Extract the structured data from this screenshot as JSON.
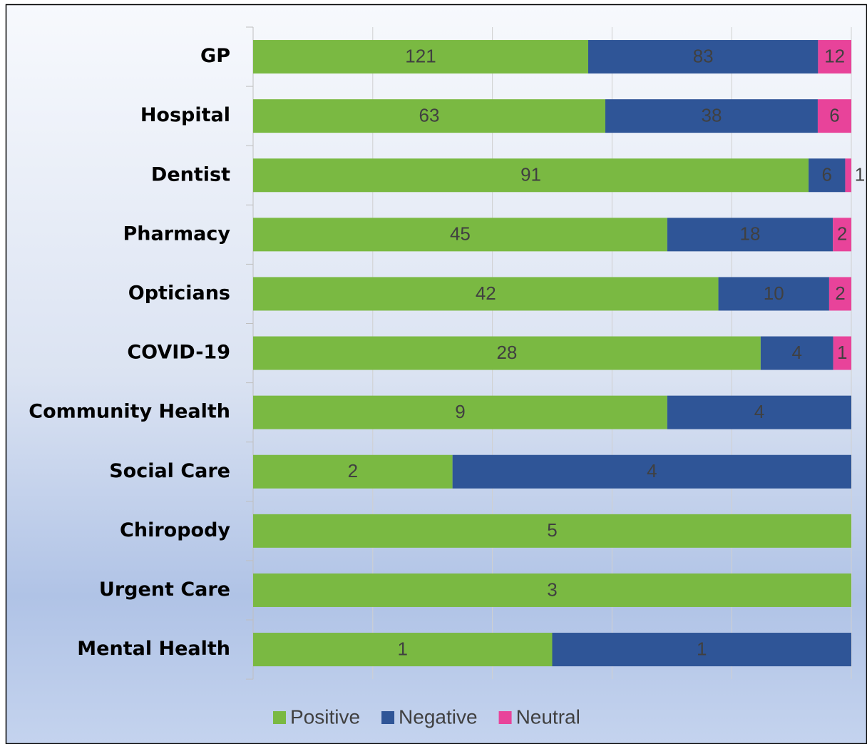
{
  "chart_data": {
    "type": "bar",
    "orientation": "horizontal",
    "stacked": "percent",
    "categories": [
      "GP",
      "Hospital",
      "Dentist",
      "Pharmacy",
      "Opticians",
      "COVID-19",
      "Community Health",
      "Social Care",
      "Chiropody",
      "Urgent Care",
      "Mental Health"
    ],
    "series": [
      {
        "name": "Positive",
        "color": "#7ab942",
        "values": [
          121,
          63,
          91,
          45,
          42,
          28,
          9,
          2,
          5,
          3,
          1
        ]
      },
      {
        "name": "Negative",
        "color": "#2f5597",
        "values": [
          83,
          38,
          6,
          18,
          10,
          4,
          4,
          4,
          0,
          0,
          1
        ]
      },
      {
        "name": "Neutral",
        "color": "#e8439a",
        "values": [
          12,
          6,
          1,
          2,
          2,
          1,
          0,
          0,
          0,
          0,
          0
        ]
      }
    ],
    "xlim": [
      0,
      100
    ],
    "xticks": [
      0,
      20,
      40,
      60,
      80,
      100
    ],
    "grid": true,
    "legend": "bottom"
  }
}
